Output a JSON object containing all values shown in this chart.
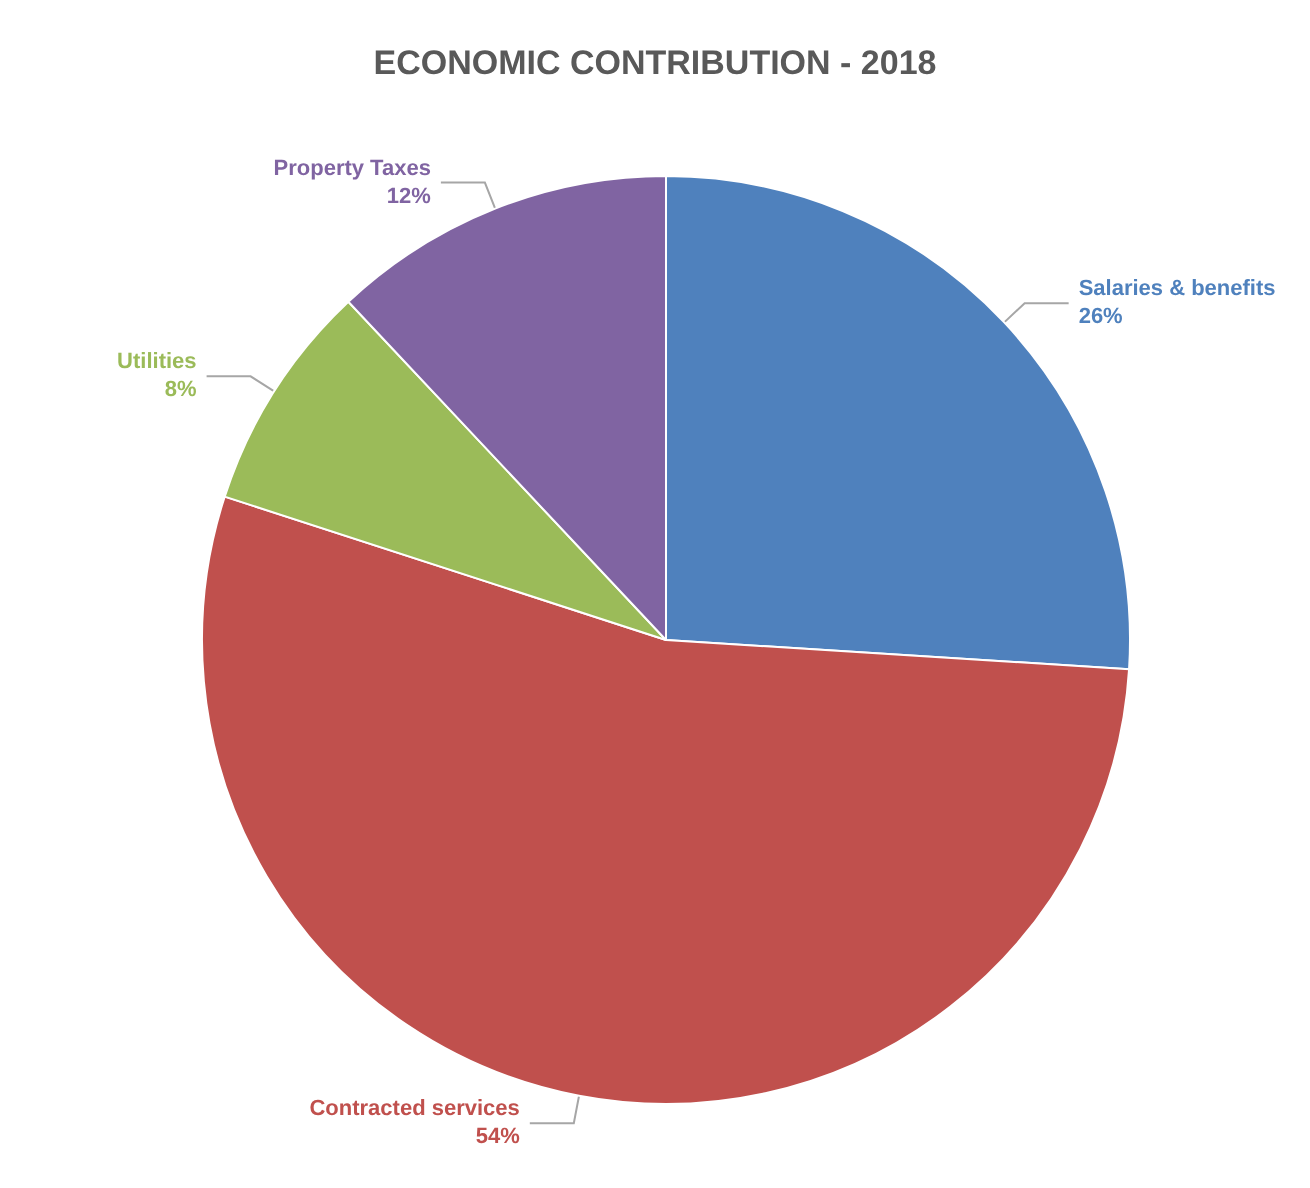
{
  "chart_data": {
    "type": "pie",
    "title": "ECONOMIC CONTRIBUTION - 2018",
    "categories": [
      "Salaries & benefits",
      "Contracted services",
      "Utilities",
      "Property Taxes"
    ],
    "values": [
      26,
      54,
      8,
      12
    ],
    "colors": [
      "#4f81bd",
      "#c0504d",
      "#9bbb59",
      "#8064a2"
    ],
    "value_labels": [
      "26%",
      "54%",
      "8%",
      "12%"
    ]
  }
}
